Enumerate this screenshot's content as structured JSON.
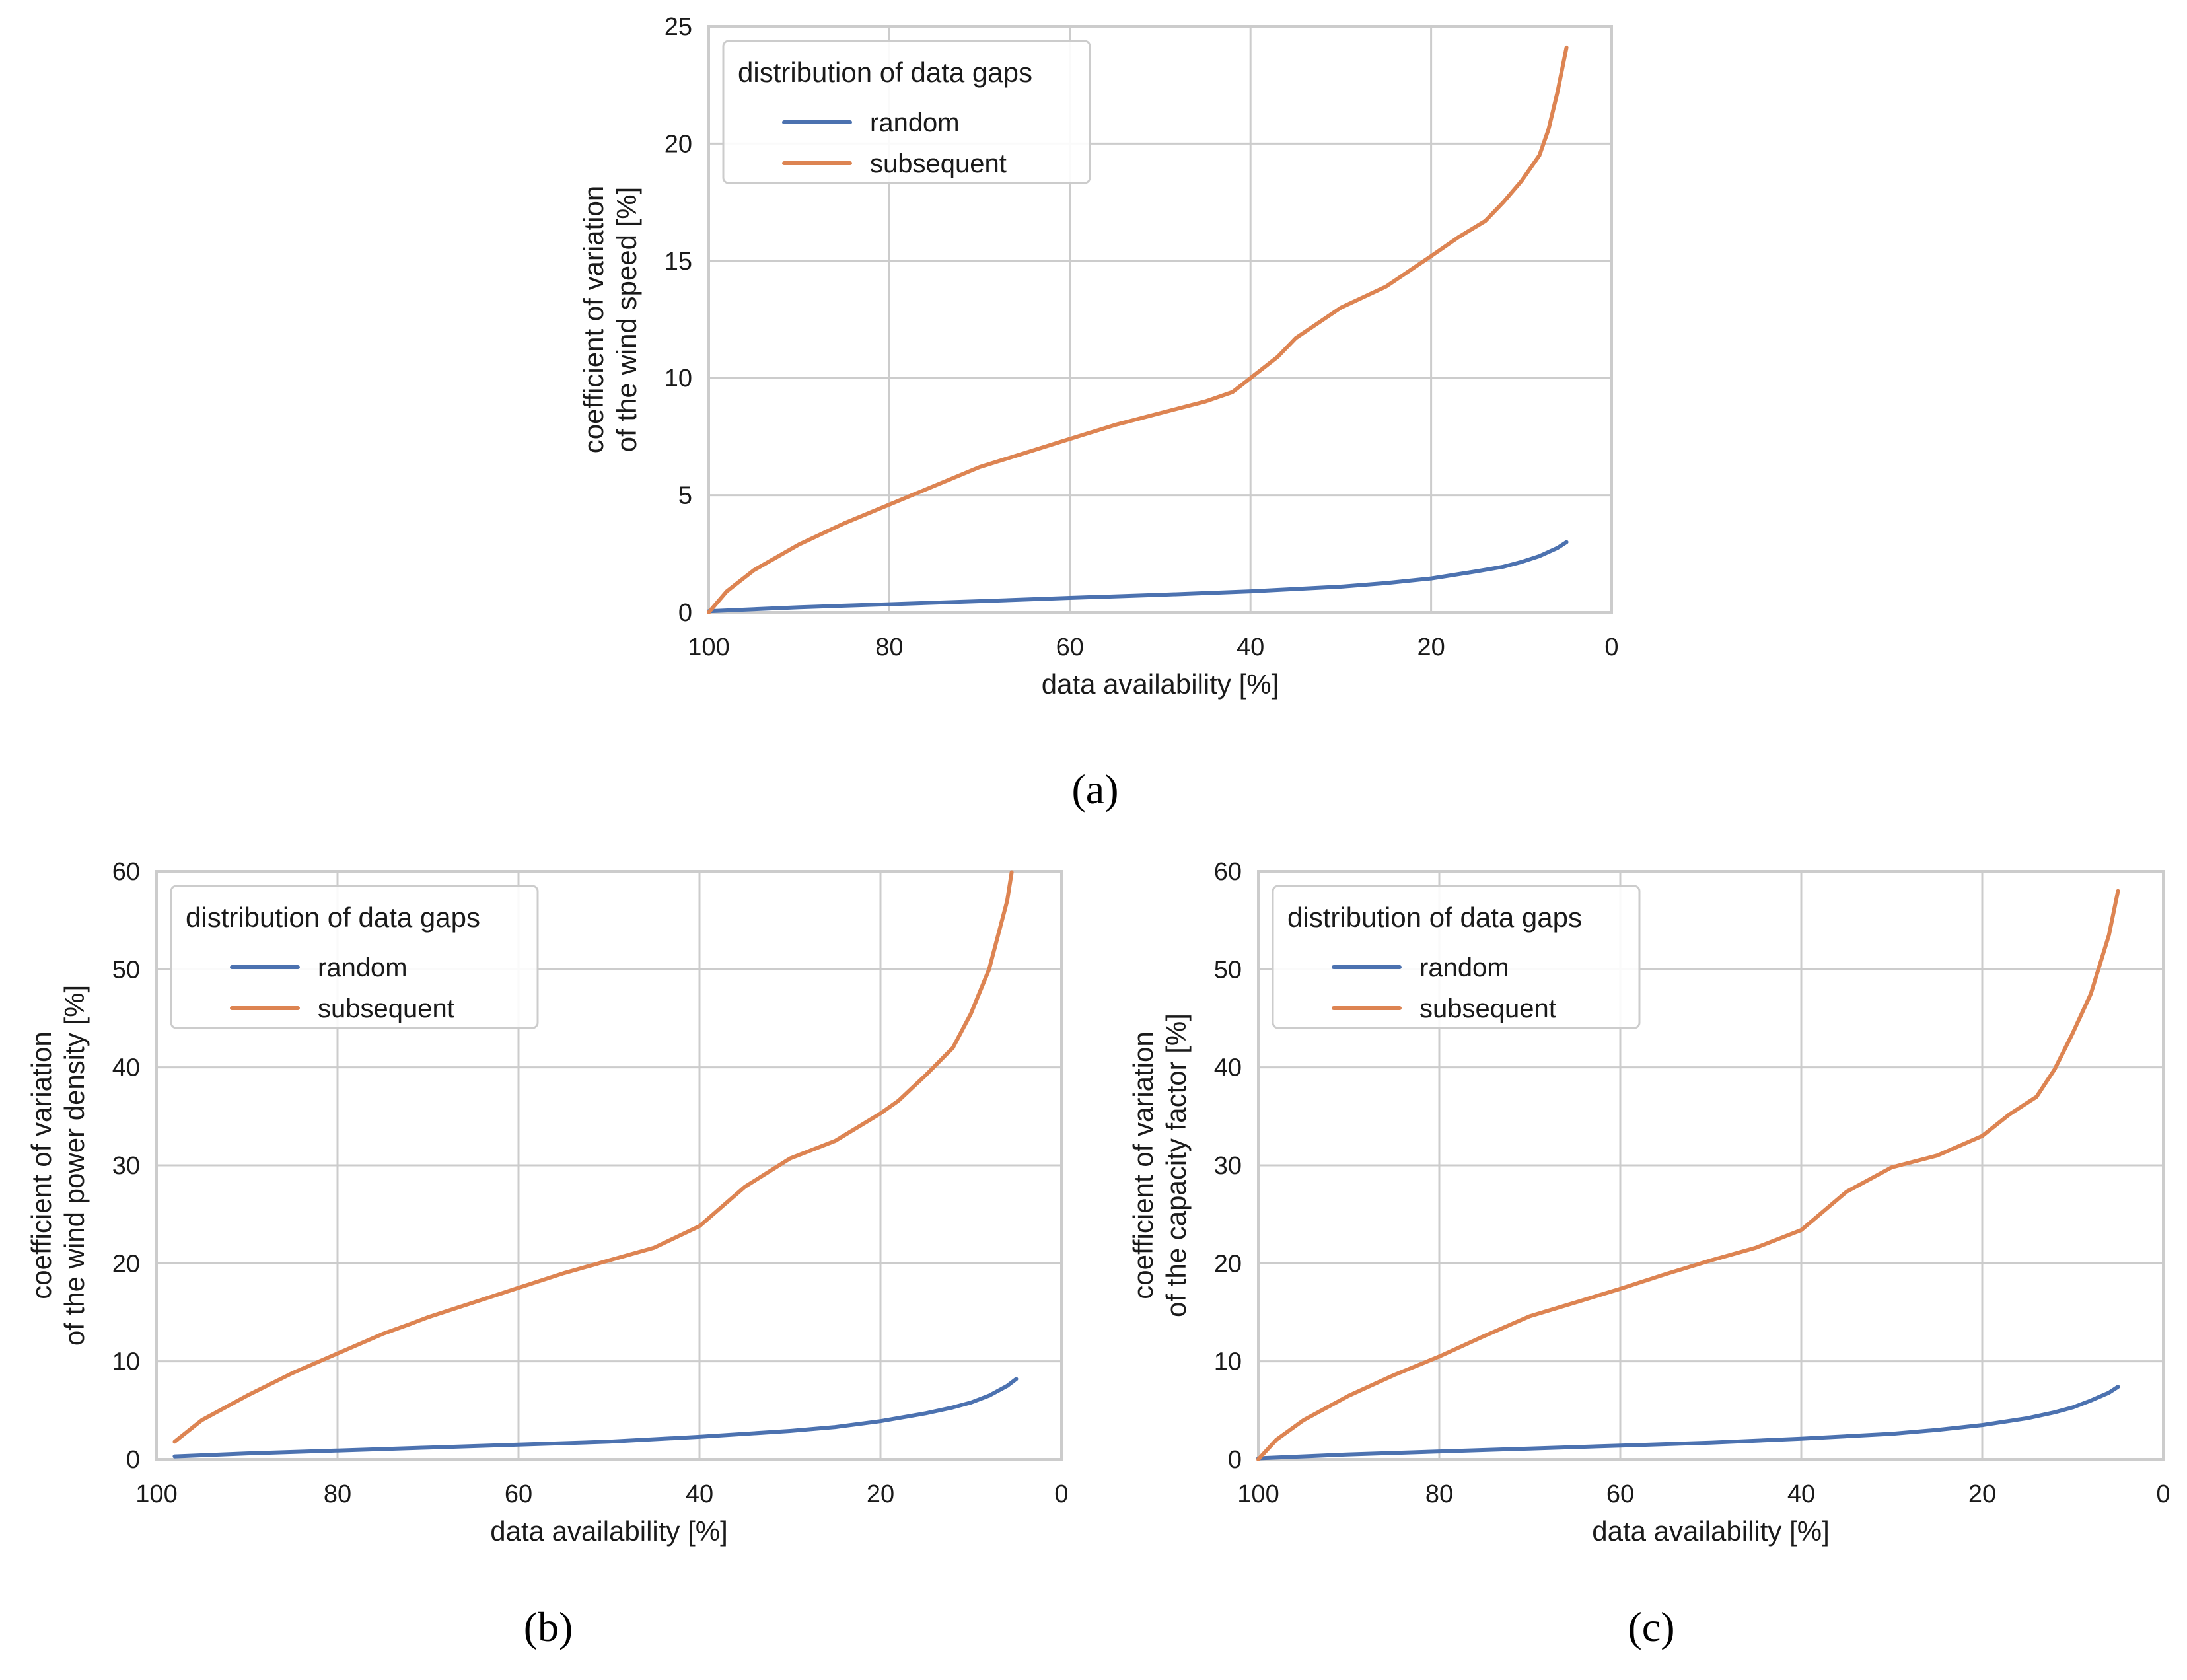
{
  "colors": {
    "random": "#4c72b0",
    "subsequent": "#dd8452",
    "grid": "#cccccc",
    "frame": "#cccccc"
  },
  "chart_data": [
    {
      "id": "a",
      "caption": "(a)",
      "type": "line",
      "xlabel": "data availability [%]",
      "ylabel": [
        "coefficient of variation",
        "of the wind speed [%]"
      ],
      "xlim": [
        100,
        0
      ],
      "ylim": [
        0,
        25
      ],
      "xticks": [
        100,
        80,
        60,
        40,
        20,
        0
      ],
      "yticks": [
        0,
        5,
        10,
        15,
        20,
        25
      ],
      "grid": true,
      "legend": {
        "title": "distribution of data gaps",
        "position": "top-left"
      },
      "series": [
        {
          "name": "random",
          "color": "#4c72b0",
          "x": [
            100,
            90,
            80,
            70,
            60,
            50,
            40,
            30,
            25,
            20,
            15,
            12,
            10,
            8,
            6,
            5
          ],
          "y": [
            0.05,
            0.22,
            0.35,
            0.48,
            0.62,
            0.75,
            0.9,
            1.1,
            1.25,
            1.45,
            1.75,
            1.95,
            2.15,
            2.4,
            2.75,
            3.0
          ]
        },
        {
          "name": "subsequent",
          "color": "#dd8452",
          "x": [
            100,
            98,
            95,
            90,
            85,
            80,
            75,
            70,
            65,
            60,
            55,
            50,
            45,
            42,
            40,
            37,
            35,
            30,
            25,
            20,
            17,
            14,
            12,
            10,
            8,
            7,
            6,
            5
          ],
          "y": [
            0.0,
            0.9,
            1.8,
            2.9,
            3.8,
            4.6,
            5.4,
            6.2,
            6.8,
            7.4,
            8.0,
            8.5,
            9.0,
            9.4,
            10.0,
            10.9,
            11.7,
            13.0,
            13.9,
            15.2,
            16.0,
            16.7,
            17.5,
            18.4,
            19.5,
            20.6,
            22.2,
            24.1
          ]
        }
      ]
    },
    {
      "id": "b",
      "caption": "(b)",
      "type": "line",
      "xlabel": "data availability [%]",
      "ylabel": [
        "coefficient of variation",
        "of the wind power density [%]"
      ],
      "xlim": [
        100,
        0
      ],
      "ylim": [
        0,
        60
      ],
      "xticks": [
        100,
        80,
        60,
        40,
        20,
        0
      ],
      "yticks": [
        0,
        10,
        20,
        30,
        40,
        50,
        60
      ],
      "grid": true,
      "legend": {
        "title": "distribution of data gaps",
        "position": "top-left"
      },
      "series": [
        {
          "name": "random",
          "color": "#4c72b0",
          "x": [
            98,
            90,
            80,
            70,
            60,
            50,
            40,
            30,
            25,
            20,
            15,
            12,
            10,
            8,
            6,
            5
          ],
          "y": [
            0.3,
            0.6,
            0.9,
            1.2,
            1.5,
            1.8,
            2.3,
            2.9,
            3.3,
            3.9,
            4.7,
            5.3,
            5.8,
            6.5,
            7.5,
            8.2
          ]
        },
        {
          "name": "subsequent",
          "color": "#dd8452",
          "x": [
            98,
            95,
            90,
            85,
            80,
            75,
            72,
            70,
            65,
            60,
            55,
            50,
            45,
            40,
            35,
            30,
            25,
            20,
            18,
            15,
            12,
            10,
            8,
            7,
            6,
            5.5
          ],
          "y": [
            1.8,
            4.0,
            6.5,
            8.8,
            10.8,
            12.8,
            13.8,
            14.5,
            16.0,
            17.5,
            19.0,
            20.3,
            21.6,
            23.8,
            27.8,
            30.7,
            32.5,
            35.3,
            36.6,
            39.2,
            42.0,
            45.5,
            50.0,
            53.5,
            57.0,
            59.9
          ]
        }
      ]
    },
    {
      "id": "c",
      "caption": "(c)",
      "type": "line",
      "xlabel": "data availability [%]",
      "ylabel": [
        "coefficient of variation",
        "of the capacity factor [%]"
      ],
      "xlim": [
        100,
        0
      ],
      "ylim": [
        0,
        60
      ],
      "xticks": [
        100,
        80,
        60,
        40,
        20,
        0
      ],
      "yticks": [
        0,
        10,
        20,
        30,
        40,
        50,
        60
      ],
      "grid": true,
      "legend": {
        "title": "distribution of data gaps",
        "position": "top-left"
      },
      "series": [
        {
          "name": "random",
          "color": "#4c72b0",
          "x": [
            100,
            90,
            80,
            70,
            60,
            50,
            40,
            30,
            25,
            20,
            15,
            12,
            10,
            8,
            6,
            5
          ],
          "y": [
            0.1,
            0.5,
            0.8,
            1.1,
            1.4,
            1.7,
            2.1,
            2.6,
            3.0,
            3.5,
            4.2,
            4.8,
            5.3,
            6.0,
            6.8,
            7.4
          ]
        },
        {
          "name": "subsequent",
          "color": "#dd8452",
          "x": [
            100,
            98,
            95,
            90,
            85,
            80,
            75,
            72,
            70,
            65,
            60,
            55,
            50,
            45,
            40,
            35,
            30,
            25,
            20,
            17,
            14,
            12,
            10,
            8,
            6,
            5
          ],
          "y": [
            0.0,
            2.0,
            4.0,
            6.5,
            8.6,
            10.5,
            12.6,
            13.8,
            14.6,
            16.0,
            17.4,
            18.9,
            20.3,
            21.6,
            23.4,
            27.3,
            29.8,
            31.0,
            33.0,
            35.2,
            37.0,
            39.8,
            43.5,
            47.5,
            53.5,
            58.0
          ]
        }
      ]
    }
  ]
}
